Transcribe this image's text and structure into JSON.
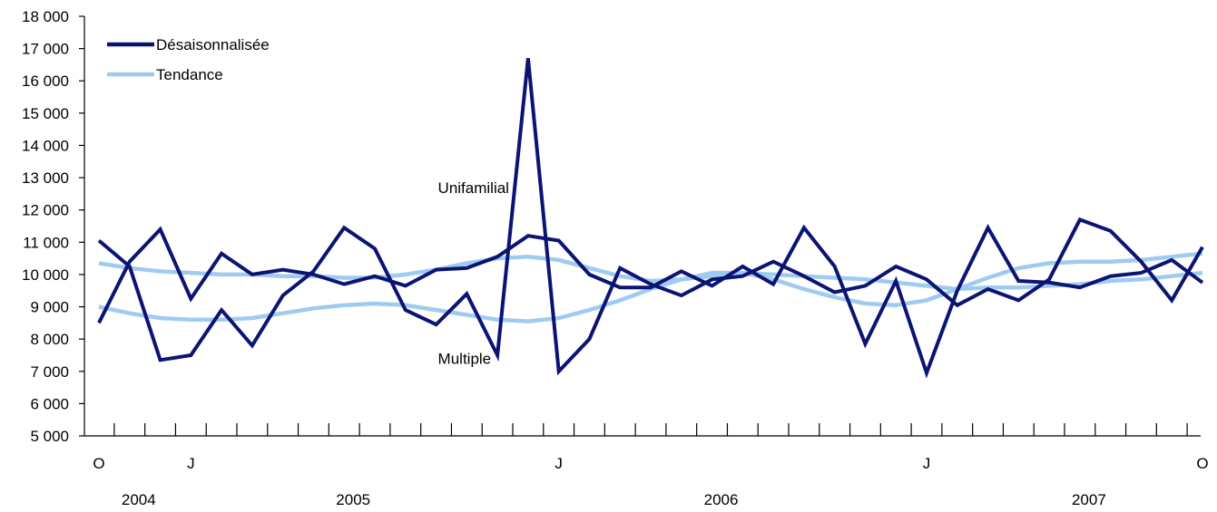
{
  "chart_data": {
    "type": "line",
    "x": [
      "2004-10",
      "2004-11",
      "2004-12",
      "2005-01",
      "2005-02",
      "2005-03",
      "2005-04",
      "2005-05",
      "2005-06",
      "2005-07",
      "2005-08",
      "2005-09",
      "2005-10",
      "2005-11",
      "2005-12",
      "2006-01",
      "2006-02",
      "2006-03",
      "2006-04",
      "2006-05",
      "2006-06",
      "2006-07",
      "2006-08",
      "2006-09",
      "2006-10",
      "2006-11",
      "2006-12",
      "2007-01",
      "2007-02",
      "2007-03",
      "2007-04",
      "2007-05",
      "2007-06",
      "2007-07",
      "2007-08",
      "2007-09",
      "2007-10"
    ],
    "ylim": [
      5000,
      18000
    ],
    "yticks": [
      5000,
      6000,
      7000,
      8000,
      9000,
      10000,
      11000,
      12000,
      13000,
      14000,
      15000,
      16000,
      17000,
      18000
    ],
    "ytick_labels": [
      "5 000",
      "6 000",
      "7 000",
      "8 000",
      "9 000",
      "10 000",
      "11 000",
      "12 000",
      "13 000",
      "14 000",
      "15 000",
      "16 000",
      "17 000",
      "18 000"
    ],
    "xtick_labels": [
      {
        "label": "O",
        "index": 0
      },
      {
        "label": "J",
        "index": 3
      },
      {
        "label": "J",
        "index": 15
      },
      {
        "label": "J",
        "index": 27
      },
      {
        "label": "O",
        "index": 36
      }
    ],
    "year_labels": [
      {
        "label": "2004",
        "index": 1
      },
      {
        "label": "2005",
        "index": 8
      },
      {
        "label": "2006",
        "index": 20
      },
      {
        "label": "2007",
        "index": 32
      }
    ],
    "legend": {
      "position": "top-left",
      "entries": [
        {
          "label": "Désaisonnalisée",
          "color": "#0b1473"
        },
        {
          "label": "Tendance",
          "color": "#9fcbf2"
        }
      ]
    },
    "annotations": [
      {
        "text": "Unifamilial",
        "x_index": 11,
        "y": 12700
      },
      {
        "text": "Multiple",
        "x_index": 11,
        "y": 7400
      }
    ],
    "series": [
      {
        "group": "Unifamilial",
        "kind": "Désaisonnalisée",
        "color": "#0b1473",
        "values": [
          11050,
          10250,
          7350,
          7500,
          8900,
          7800,
          9350,
          10100,
          11450,
          10800,
          8900,
          8450,
          9400,
          7500,
          16700,
          7000,
          8000,
          10200,
          9700,
          9350,
          9850,
          9950,
          10400,
          9950,
          9450,
          9650,
          10250,
          9850,
          9050,
          9550,
          9200,
          9850,
          11700,
          11350,
          10400,
          9200,
          10850
        ]
      },
      {
        "group": "Multiple",
        "kind": "Désaisonnalisée",
        "color": "#0b1473",
        "values": [
          8500,
          10400,
          11400,
          9250,
          10650,
          10000,
          10150,
          10000,
          9700,
          9950,
          9650,
          10150,
          10200,
          10550,
          11200,
          11050,
          10000,
          9600,
          9600,
          10100,
          9650,
          10250,
          9700,
          11450,
          10250,
          7850,
          9800,
          6950,
          9500,
          11450,
          9800,
          9750,
          9600,
          9950,
          10050,
          10450,
          9750
        ]
      },
      {
        "group": "Unifamilial",
        "kind": "Tendance",
        "color": "#9fcbf2",
        "values": [
          10350,
          10200,
          10100,
          10050,
          10000,
          10000,
          9950,
          9950,
          9900,
          9900,
          10000,
          10150,
          10350,
          10500,
          10550,
          10450,
          10200,
          9950,
          9800,
          9850,
          9950,
          10050,
          10000,
          9950,
          9900,
          9850,
          9750,
          9650,
          9550,
          9600,
          9600,
          9650,
          9700,
          9800,
          9850,
          9950,
          10050
        ]
      },
      {
        "group": "Multiple",
        "kind": "Tendance",
        "color": "#9fcbf2",
        "values": [
          9000,
          8800,
          8650,
          8600,
          8600,
          8650,
          8800,
          8950,
          9050,
          9100,
          9050,
          8900,
          8750,
          8600,
          8550,
          8650,
          8900,
          9200,
          9550,
          9850,
          10050,
          10050,
          9850,
          9550,
          9300,
          9100,
          9050,
          9200,
          9550,
          9900,
          10200,
          10350,
          10400,
          10400,
          10450,
          10550,
          10650
        ]
      }
    ]
  }
}
